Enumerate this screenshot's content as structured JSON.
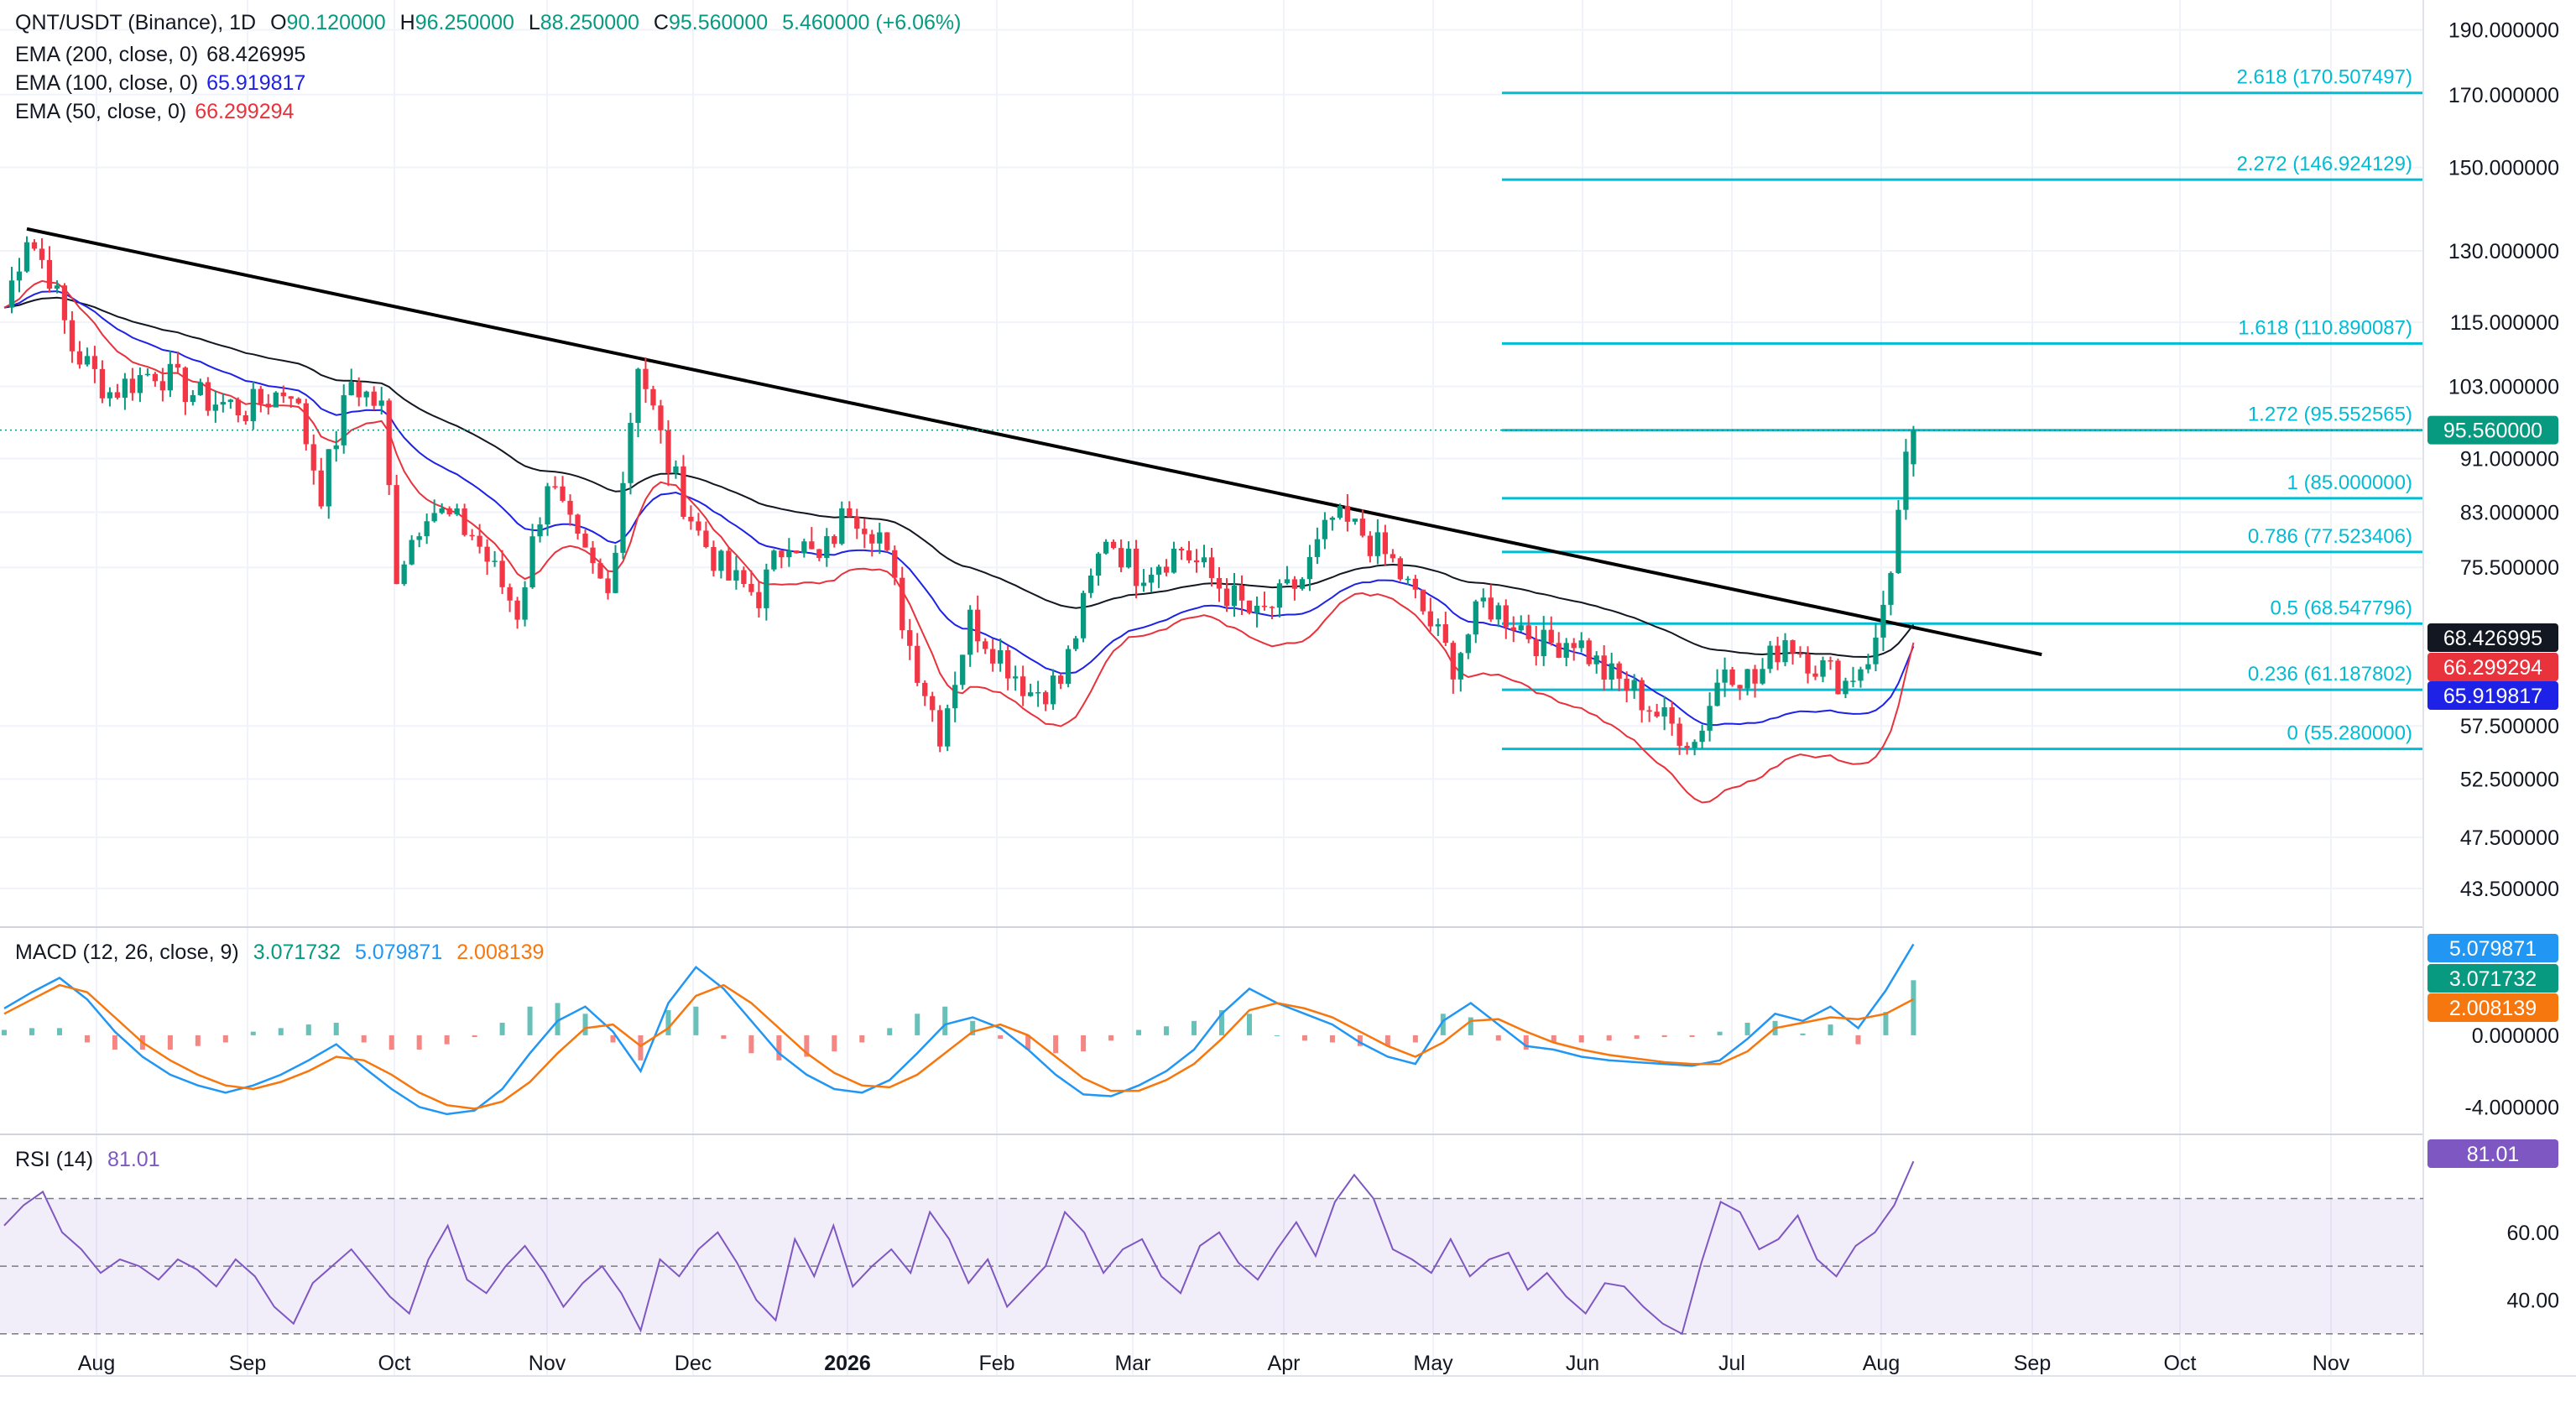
{
  "header": {
    "symbol": "QNT/USDT (Binance), 1D",
    "open_label": "O",
    "open": "90.120000",
    "high_label": "H",
    "high": "96.250000",
    "low_label": "L",
    "low": "88.250000",
    "close_label": "C",
    "close": "95.560000",
    "change": "5.460000 (+6.06%)"
  },
  "indicators": {
    "ema200": {
      "label": "EMA (200, close, 0)",
      "value": "68.426995",
      "color": "#131722"
    },
    "ema100": {
      "label": "EMA (100, close, 0)",
      "value": "65.919817",
      "color": "#1e22e6"
    },
    "ema50": {
      "label": "EMA (50, close, 0)",
      "value": "66.299294",
      "color": "#e8323c"
    },
    "macd": {
      "label": "MACD (12, 26, close, 9)",
      "hist": "3.071732",
      "macd": "5.079871",
      "signal": "2.008139"
    },
    "rsi": {
      "label": "RSI (14)",
      "value": "81.01"
    }
  },
  "colors": {
    "up": "#089981",
    "down": "#f23645",
    "fib": "#00bcd4",
    "trendline": "#000000",
    "rsi": "#7e57c2",
    "macd": "#2196f3",
    "signal": "#f7770f"
  },
  "chart_data": {
    "type": "candlestick",
    "title": "QNT/USDT (Binance), 1D",
    "price_axis": {
      "ticks": [
        "190.000000",
        "170.000000",
        "150.000000",
        "130.000000",
        "115.000000",
        "103.000000",
        "91.000000",
        "83.000000",
        "75.500000",
        "57.500000",
        "52.500000",
        "47.500000",
        "43.500000"
      ],
      "scale": "log",
      "range": [
        41,
        200
      ]
    },
    "time_axis": {
      "labels": [
        "Aug",
        "Sep",
        "Oct",
        "Nov",
        "Dec",
        "2026",
        "Feb",
        "Mar",
        "Apr",
        "May",
        "Jun",
        "Jul",
        "Aug",
        "Sep",
        "Oct",
        "Nov"
      ]
    },
    "price_points": [
      {
        "date_index": 0,
        "price": 118
      },
      {
        "date_index": 3,
        "price": 134
      },
      {
        "date_index": 6,
        "price": 125
      },
      {
        "date_index": 9,
        "price": 110
      },
      {
        "date_index": 14,
        "price": 102
      },
      {
        "date_index": 20,
        "price": 106
      },
      {
        "date_index": 26,
        "price": 101
      },
      {
        "date_index": 32,
        "price": 99
      },
      {
        "date_index": 38,
        "price": 103
      },
      {
        "date_index": 42,
        "price": 86
      },
      {
        "date_index": 46,
        "price": 104
      },
      {
        "date_index": 50,
        "price": 99
      },
      {
        "date_index": 52,
        "price": 75
      },
      {
        "date_index": 56,
        "price": 84
      },
      {
        "date_index": 62,
        "price": 80
      },
      {
        "date_index": 68,
        "price": 70
      },
      {
        "date_index": 72,
        "price": 88
      },
      {
        "date_index": 76,
        "price": 78
      },
      {
        "date_index": 80,
        "price": 72
      },
      {
        "date_index": 84,
        "price": 108
      },
      {
        "date_index": 88,
        "price": 90
      },
      {
        "date_index": 92,
        "price": 80
      },
      {
        "date_index": 96,
        "price": 74
      },
      {
        "date_index": 100,
        "price": 72
      },
      {
        "date_index": 104,
        "price": 80
      },
      {
        "date_index": 108,
        "price": 76
      },
      {
        "date_index": 112,
        "price": 84
      },
      {
        "date_index": 116,
        "price": 80
      },
      {
        "date_index": 120,
        "price": 66
      },
      {
        "date_index": 124,
        "price": 57
      },
      {
        "date_index": 128,
        "price": 69
      },
      {
        "date_index": 132,
        "price": 65
      },
      {
        "date_index": 136,
        "price": 61
      },
      {
        "date_index": 140,
        "price": 62
      },
      {
        "date_index": 146,
        "price": 80
      },
      {
        "date_index": 150,
        "price": 75
      },
      {
        "date_index": 156,
        "price": 78
      },
      {
        "date_index": 160,
        "price": 74
      },
      {
        "date_index": 166,
        "price": 69
      },
      {
        "date_index": 172,
        "price": 74
      },
      {
        "date_index": 176,
        "price": 82
      },
      {
        "date_index": 180,
        "price": 80
      },
      {
        "date_index": 184,
        "price": 76
      },
      {
        "date_index": 188,
        "price": 70
      },
      {
        "date_index": 192,
        "price": 64
      },
      {
        "date_index": 196,
        "price": 71
      },
      {
        "date_index": 200,
        "price": 69
      },
      {
        "date_index": 204,
        "price": 66
      },
      {
        "date_index": 208,
        "price": 67
      },
      {
        "date_index": 212,
        "price": 63
      },
      {
        "date_index": 216,
        "price": 61
      },
      {
        "date_index": 220,
        "price": 58
      },
      {
        "date_index": 224,
        "price": 56
      },
      {
        "date_index": 228,
        "price": 64
      },
      {
        "date_index": 232,
        "price": 62
      },
      {
        "date_index": 236,
        "price": 67
      },
      {
        "date_index": 240,
        "price": 64
      },
      {
        "date_index": 244,
        "price": 62
      },
      {
        "date_index": 248,
        "price": 66
      },
      {
        "date_index": 250,
        "price": 76
      },
      {
        "date_index": 252,
        "price": 90
      },
      {
        "date_index": 253,
        "price": 95.56
      }
    ],
    "series": [
      {
        "name": "EMA (200, close, 0)",
        "last": 68.426995
      },
      {
        "name": "EMA (100, close, 0)",
        "last": 65.919817
      },
      {
        "name": "EMA (50, close, 0)",
        "last": 66.299294
      }
    ],
    "fibonacci": [
      {
        "label": "2.618 (170.507497)",
        "value": 170.507497
      },
      {
        "label": "2.272 (146.924129)",
        "value": 146.924129
      },
      {
        "label": "1.618 (110.890087)",
        "value": 110.890087
      },
      {
        "label": "1.272 (95.552565)",
        "value": 95.552565
      },
      {
        "label": "1 (85.000000)",
        "value": 85.0
      },
      {
        "label": "0.786 (77.523406)",
        "value": 77.523406
      },
      {
        "label": "0.5 (68.547796)",
        "value": 68.547796
      },
      {
        "label": "0.236 (61.187802)",
        "value": 61.187802
      },
      {
        "label": "0 (55.280000)",
        "value": 55.28
      }
    ],
    "trendline": {
      "from": {
        "date_index": 3,
        "price": 135
      },
      "to": {
        "date_index": 270,
        "price": 65
      }
    },
    "price_labels": [
      {
        "value": "95.560000",
        "color": "#089981"
      },
      {
        "value": "68.426995",
        "color": "#131722"
      },
      {
        "value": "66.299294",
        "color": "#e8323c"
      },
      {
        "value": "65.919817",
        "color": "#1e22e6"
      }
    ],
    "macd_panel": {
      "ticks": [
        "0.000000",
        "-4.000000"
      ],
      "range": [
        -5.2,
        5.8
      ],
      "labels": [
        {
          "value": "5.079871",
          "color": "#2196f3"
        },
        {
          "value": "3.071732",
          "color": "#089981"
        },
        {
          "value": "2.008139",
          "color": "#f7770f"
        }
      ],
      "macd": [
        1.5,
        2.4,
        3.2,
        2.0,
        0.2,
        -1.2,
        -2.2,
        -2.8,
        -3.2,
        -2.8,
        -2.2,
        -1.4,
        -0.5,
        -1.8,
        -3.0,
        -4.0,
        -4.4,
        -4.2,
        -3.0,
        -1.0,
        0.8,
        1.6,
        0.2,
        -2.0,
        1.8,
        3.8,
        2.6,
        0.8,
        -1.0,
        -2.2,
        -3.0,
        -3.2,
        -2.5,
        -1.0,
        0.6,
        1.0,
        0.4,
        -0.8,
        -2.2,
        -3.3,
        -3.4,
        -2.8,
        -2.0,
        -0.8,
        1.2,
        2.6,
        1.8,
        1.2,
        0.6,
        -0.4,
        -1.2,
        -1.6,
        0.8,
        1.8,
        0.6,
        -0.6,
        -0.8,
        -1.2,
        -1.4,
        -1.5,
        -1.6,
        -1.7,
        -1.4,
        -0.2,
        1.2,
        0.8,
        1.6,
        0.4,
        2.5,
        5.08
      ],
      "signal": [
        1.2,
        2.0,
        2.8,
        2.4,
        1.0,
        -0.4,
        -1.4,
        -2.2,
        -2.8,
        -3.0,
        -2.6,
        -2.0,
        -1.2,
        -1.4,
        -2.2,
        -3.2,
        -3.9,
        -4.1,
        -3.7,
        -2.6,
        -1.0,
        0.4,
        0.6,
        -0.6,
        0.4,
        2.2,
        2.8,
        1.8,
        0.4,
        -1.0,
        -2.1,
        -2.8,
        -2.9,
        -2.2,
        -1.0,
        0.2,
        0.6,
        0.0,
        -1.2,
        -2.4,
        -3.1,
        -3.1,
        -2.5,
        -1.6,
        -0.2,
        1.4,
        1.8,
        1.5,
        1.0,
        0.2,
        -0.6,
        -1.2,
        -0.4,
        0.8,
        0.9,
        0.2,
        -0.4,
        -0.8,
        -1.1,
        -1.3,
        -1.5,
        -1.6,
        -1.6,
        -0.9,
        0.4,
        0.7,
        1.0,
        0.9,
        1.2,
        2.01
      ]
    },
    "rsi_panel": {
      "ticks": [
        "60.00",
        "40.00"
      ],
      "range": [
        20,
        87
      ],
      "bands": [
        70,
        50,
        30
      ],
      "label": {
        "value": "81.01",
        "color": "#7e57c2"
      },
      "values": [
        62,
        68,
        72,
        60,
        55,
        48,
        52,
        50,
        46,
        52,
        49,
        44,
        52,
        47,
        38,
        33,
        45,
        50,
        55,
        48,
        41,
        36,
        52,
        62,
        46,
        42,
        50,
        56,
        48,
        38,
        45,
        50,
        42,
        31,
        52,
        47,
        55,
        60,
        51,
        40,
        34,
        58,
        47,
        62,
        44,
        50,
        55,
        48,
        66,
        58,
        45,
        52,
        38,
        44,
        50,
        66,
        60,
        48,
        55,
        58,
        47,
        42,
        56,
        60,
        51,
        46,
        55,
        63,
        53,
        69,
        77,
        70,
        55,
        52,
        48,
        58,
        47,
        52,
        54,
        43,
        48,
        41,
        36,
        45,
        44,
        38,
        33,
        30,
        51,
        69,
        66,
        55,
        58,
        65,
        52,
        47,
        56,
        60,
        68,
        81
      ]
    }
  }
}
